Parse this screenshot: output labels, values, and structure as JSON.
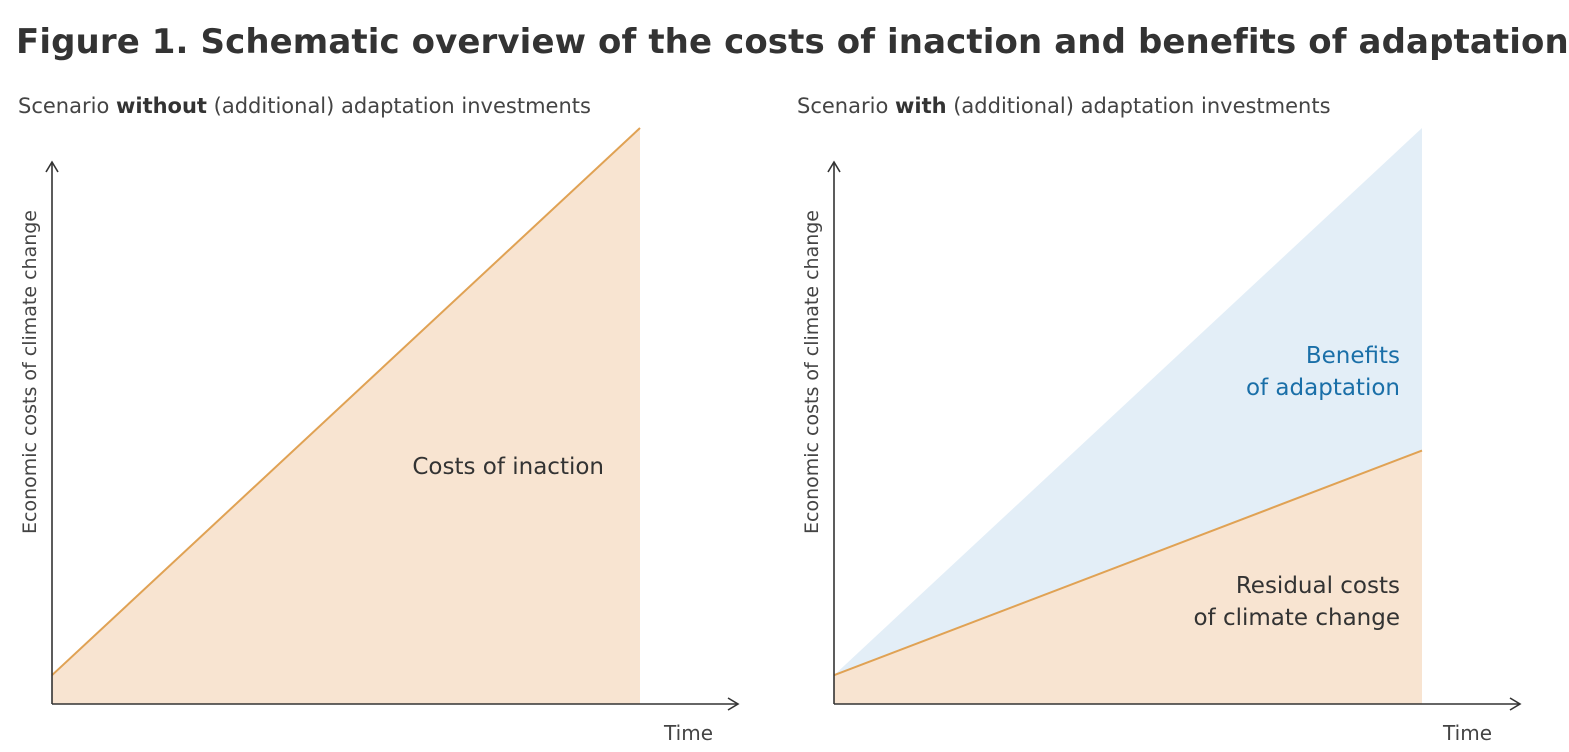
{
  "figure_title": "Figure 1. Schematic overview of the costs of inaction and benefits of adaptation",
  "colors": {
    "cost_fill": "#f8e4d1",
    "cost_line": "#e0a254",
    "benefit_fill": "#e3eef7",
    "benefit_text": "#1a6fa8",
    "axis": "#333333"
  },
  "chart_data": [
    {
      "type": "area",
      "subtitle": {
        "prefix": "Scenario ",
        "emphasis": "without",
        "suffix": " (additional) adaptation investments"
      },
      "xlabel": "Time",
      "ylabel": "Economic costs of climate change",
      "xlim": [
        0,
        1
      ],
      "ylim": [
        0,
        1
      ],
      "series": [
        {
          "name": "Costs of inaction",
          "x": [
            0,
            1
          ],
          "y": [
            0.05,
            1.0
          ]
        }
      ],
      "labels": {
        "costs": "Costs of inaction"
      }
    },
    {
      "type": "area",
      "subtitle": {
        "prefix": "Scenario ",
        "emphasis": "with",
        "suffix": " (additional) adaptation investments"
      },
      "xlabel": "Time",
      "ylabel": "Economic costs of climate change",
      "xlim": [
        0,
        1
      ],
      "ylim": [
        0,
        1
      ],
      "series": [
        {
          "name": "Residual costs of climate change",
          "x": [
            0,
            1
          ],
          "y": [
            0.05,
            0.44
          ]
        },
        {
          "name": "Benefits of adaptation",
          "x": [
            0,
            1
          ],
          "y": [
            0.05,
            1.0
          ]
        }
      ],
      "labels": {
        "benefits_line1": "Benefits",
        "benefits_line2": "of adaptation",
        "residual_line1": "Residual costs",
        "residual_line2": "of climate change"
      }
    }
  ]
}
